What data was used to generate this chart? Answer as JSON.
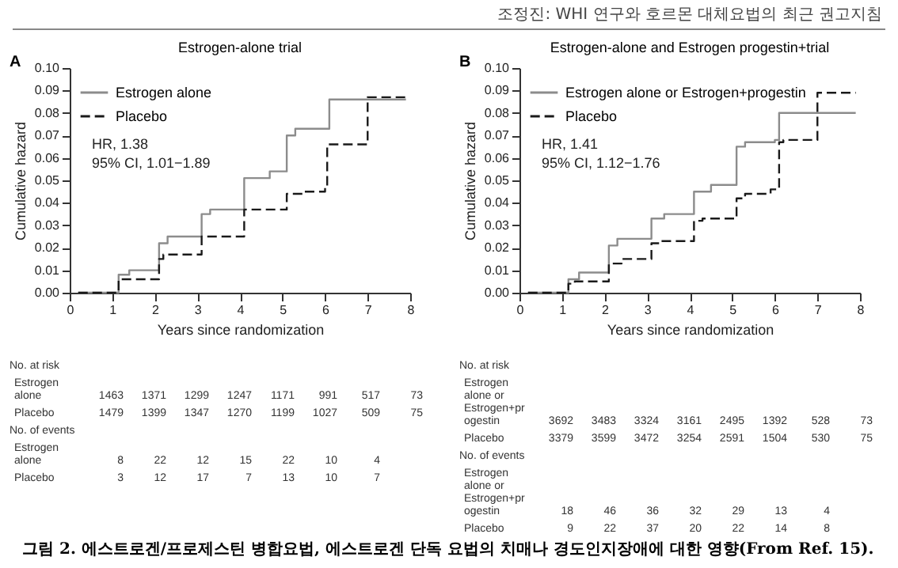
{
  "chart_data": [
    {
      "type": "step",
      "title": "Estrogen-alone trial",
      "xlabel": "Years since randomization",
      "ylabel": "Cumulative hazard",
      "xlim": [
        0,
        8
      ],
      "xticks": [
        0,
        1,
        2,
        3,
        4,
        5,
        6,
        7,
        8
      ],
      "ylim": [
        0,
        0.1
      ],
      "yticks": [
        {
          "value": 0,
          "label": "0.00"
        },
        {
          "value": 0.01,
          "label": "0.01"
        },
        {
          "value": 0.02,
          "label": "0.02"
        },
        {
          "value": 0.03,
          "label": "0.03"
        },
        {
          "value": 0.04,
          "label": "0.04"
        },
        {
          "value": 0.05,
          "label": "0.05"
        },
        {
          "value": 0.06,
          "label": "0.06"
        },
        {
          "value": 0.07,
          "label": "0.07"
        },
        {
          "value": 0.08,
          "label": "0.08"
        },
        {
          "value": 0.09,
          "label": "0.09"
        },
        {
          "value": 0.1,
          "label": "0.10"
        }
      ],
      "grid": false,
      "legend": "top left",
      "series": [
        {
          "name": "Estrogen alone",
          "color": "#8c8c8c",
          "line_style": "solid",
          "x": [
            0.2,
            1.15,
            1.4,
            2.1,
            2.3,
            3.1,
            3.3,
            4.1,
            4.7,
            5.1,
            5.3,
            6.1,
            7.9
          ],
          "values": [
            0,
            0.008,
            0.01,
            0.022,
            0.025,
            0.035,
            0.037,
            0.051,
            0.054,
            0.07,
            0.073,
            0.086,
            0.086
          ]
        },
        {
          "name": "Placebo",
          "color": "#1a1a1a",
          "line_style": "dashed",
          "x": [
            0.2,
            1.15,
            2.1,
            2.2,
            3.1,
            4.1,
            5.1,
            5.5,
            6.0,
            6.05,
            7.0,
            7.9
          ],
          "values": [
            0,
            0.006,
            0.015,
            0.017,
            0.025,
            0.037,
            0.044,
            0.045,
            0.047,
            0.066,
            0.087,
            0.087
          ]
        }
      ],
      "annotations": [
        "A",
        "HR, 1.38",
        "95% CI, 1.01−1.89",
        "No. at risk",
        "Estrogen alone 1463 1371 1299 1247 1171 991 517 73",
        "Placebo 1479 1399 1347 1270 1199 1027 509 75",
        "No. of events",
        "Estrogen alone 8 22 12 15 22 10 4",
        "Placebo 3 12 17 7 13 10 7",
        "조정진: WHI 연구와 호르몬 대체요법의 최근 권고지침"
      ]
    },
    {
      "type": "step",
      "title": "Estrogen-alone and Estrogen progestin+trial",
      "xlabel": "Years since randomization",
      "ylabel": "Cumulative hazard",
      "xlim": [
        0,
        8
      ],
      "xticks": [
        0,
        1,
        2,
        3,
        4,
        5,
        6,
        7,
        8
      ],
      "ylim": [
        0,
        0.1
      ],
      "yticks": [
        {
          "value": 0,
          "label": "0.00"
        },
        {
          "value": 0.01,
          "label": "0.01"
        },
        {
          "value": 0.02,
          "label": "0.02"
        },
        {
          "value": 0.03,
          "label": "0.03"
        },
        {
          "value": 0.04,
          "label": "0.04"
        },
        {
          "value": 0.05,
          "label": "0.05"
        },
        {
          "value": 0.06,
          "label": "0.06"
        },
        {
          "value": 0.07,
          "label": "0.07"
        },
        {
          "value": 0.08,
          "label": "0.08"
        },
        {
          "value": 0.09,
          "label": "0.09"
        },
        {
          "value": 0.1,
          "label": "0.10"
        }
      ],
      "grid": false,
      "legend": "top left",
      "series": [
        {
          "name": "Estrogen alone or Estrogen+progestin",
          "color": "#8c8c8c",
          "line_style": "solid",
          "x": [
            0.2,
            1.15,
            1.4,
            2.1,
            2.3,
            3.1,
            3.4,
            4.1,
            4.5,
            5.1,
            5.3,
            6.0,
            6.1,
            7.9
          ],
          "values": [
            0,
            0.006,
            0.009,
            0.021,
            0.024,
            0.033,
            0.035,
            0.045,
            0.048,
            0.065,
            0.067,
            0.068,
            0.08,
            0.08
          ]
        },
        {
          "name": "Placebo",
          "color": "#1a1a1a",
          "line_style": "dashed",
          "x": [
            0.2,
            1.15,
            1.3,
            2.1,
            2.4,
            3.1,
            3.3,
            4.1,
            4.3,
            5.1,
            5.3,
            5.9,
            6.1,
            6.2,
            7.0,
            7.9
          ],
          "values": [
            0,
            0.004,
            0.005,
            0.013,
            0.015,
            0.022,
            0.023,
            0.032,
            0.033,
            0.042,
            0.044,
            0.046,
            0.067,
            0.068,
            0.089,
            0.089
          ]
        }
      ],
      "annotations": [
        "B",
        "HR, 1.41",
        "95% CI, 1.12−1.76",
        "No. at risk",
        "Estrogen alone or Estrogen+progestin 3692 3483 3324 3161 2495 1392 528 73",
        "Placebo 3379 3599 3472 3254 2591 1504 530 75",
        "No. of events",
        "Estrogen alone or Estrogen+progestin 18 46 36 32 29 13 4",
        "Placebo 9 22 37 20 22 14 8",
        "그림 2. 에스트로겐/프로제스틴 병합요법, 에스트로겐 단독 요법의 치매나 경도인지장애에 대한 영향(From Ref. 15)."
      ]
    }
  ]
}
